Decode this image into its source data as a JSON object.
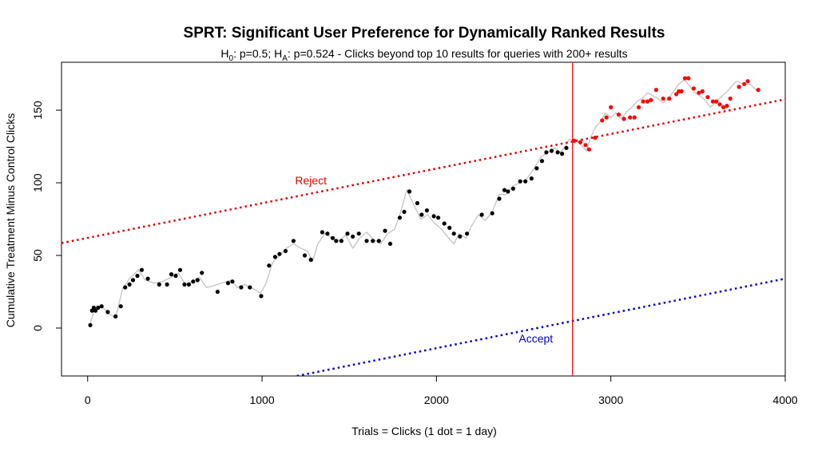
{
  "chart_data": {
    "type": "scatter",
    "title": "SPRT: Significant User Preference for Dynamically Ranked Results",
    "subtitle": {
      "h0_symbol": "H",
      "h0_sub": "0",
      "h0_text": ": p=0.5; ",
      "ha_symbol": "H",
      "ha_sub": "A",
      "ha_text": ": p=0.524 - Clicks beyond top 10 results for queries with 200+ results"
    },
    "xlabel": "Trials = Clicks (1 dot = 1 day)",
    "ylabel": "Cumulative Treatment Minus Control Clicks",
    "xlim": [
      -150,
      4000
    ],
    "ylim": [
      -33,
      183
    ],
    "xticks": [
      0,
      1000,
      2000,
      3000,
      4000
    ],
    "yticks": [
      0,
      50,
      100,
      150
    ],
    "xtick_labels": [
      "0",
      "1000",
      "2000",
      "3000",
      "4000"
    ],
    "ytick_labels": [
      "0",
      "50",
      "100",
      "150"
    ],
    "grid": false,
    "colors": {
      "walk": "#bebebe",
      "before": "#000000",
      "after": "#ff0000",
      "reject": "#dd0000",
      "accept": "#0000cc",
      "vline": "#ff0000"
    },
    "reject_line": {
      "label": "Reject",
      "label_x": 1280,
      "label_y": 99,
      "x": [
        -150,
        4000
      ],
      "y": [
        58.5,
        157.5
      ]
    },
    "accept_line": {
      "label": "Accept",
      "label_x": 2570,
      "label_y": -10,
      "x": [
        1200,
        4000
      ],
      "y": [
        -33,
        34
      ]
    },
    "vline_x": 2780,
    "walk": [
      [
        10,
        1
      ],
      [
        40,
        13
      ],
      [
        80,
        15
      ],
      [
        120,
        10
      ],
      [
        160,
        7
      ],
      [
        200,
        27
      ],
      [
        240,
        34
      ],
      [
        290,
        40
      ],
      [
        330,
        33
      ],
      [
        380,
        31
      ],
      [
        430,
        32
      ],
      [
        480,
        35
      ],
      [
        520,
        38
      ],
      [
        560,
        30
      ],
      [
        600,
        32
      ],
      [
        640,
        35
      ],
      [
        680,
        28
      ],
      [
        720,
        29
      ],
      [
        770,
        31
      ],
      [
        820,
        33
      ],
      [
        860,
        28
      ],
      [
        900,
        30
      ],
      [
        950,
        27
      ],
      [
        990,
        24
      ],
      [
        1020,
        30
      ],
      [
        1060,
        45
      ],
      [
        1100,
        50
      ],
      [
        1140,
        55
      ],
      [
        1180,
        58
      ],
      [
        1220,
        55
      ],
      [
        1260,
        53
      ],
      [
        1290,
        46
      ],
      [
        1320,
        58
      ],
      [
        1360,
        65
      ],
      [
        1400,
        62
      ],
      [
        1440,
        60
      ],
      [
        1480,
        64
      ],
      [
        1520,
        55
      ],
      [
        1560,
        62
      ],
      [
        1600,
        66
      ],
      [
        1640,
        61
      ],
      [
        1680,
        58
      ],
      [
        1720,
        65
      ],
      [
        1760,
        68
      ],
      [
        1790,
        78
      ],
      [
        1830,
        95
      ],
      [
        1870,
        85
      ],
      [
        1910,
        75
      ],
      [
        1950,
        78
      ],
      [
        1990,
        72
      ],
      [
        2030,
        68
      ],
      [
        2070,
        62
      ],
      [
        2100,
        58
      ],
      [
        2130,
        65
      ],
      [
        2170,
        62
      ],
      [
        2200,
        70
      ],
      [
        2240,
        78
      ],
      [
        2280,
        74
      ],
      [
        2320,
        80
      ],
      [
        2360,
        92
      ],
      [
        2400,
        92
      ],
      [
        2440,
        98
      ],
      [
        2480,
        100
      ],
      [
        2520,
        103
      ],
      [
        2560,
        110
      ],
      [
        2600,
        118
      ],
      [
        2640,
        121
      ],
      [
        2680,
        124
      ],
      [
        2710,
        121
      ],
      [
        2740,
        125
      ],
      [
        2760,
        130
      ],
      [
        2800,
        129
      ],
      [
        2830,
        126
      ],
      [
        2860,
        122
      ],
      [
        2880,
        130
      ],
      [
        2910,
        138
      ],
      [
        2940,
        142
      ],
      [
        2970,
        148
      ],
      [
        3000,
        145
      ],
      [
        3030,
        148
      ],
      [
        3060,
        144
      ],
      [
        3090,
        149
      ],
      [
        3120,
        152
      ],
      [
        3150,
        156
      ],
      [
        3180,
        158
      ],
      [
        3210,
        162
      ],
      [
        3240,
        160
      ],
      [
        3270,
        158
      ],
      [
        3300,
        155
      ],
      [
        3330,
        158
      ],
      [
        3360,
        163
      ],
      [
        3390,
        168
      ],
      [
        3420,
        171
      ],
      [
        3450,
        167
      ],
      [
        3480,
        162
      ],
      [
        3510,
        160
      ],
      [
        3540,
        157
      ],
      [
        3570,
        152
      ],
      [
        3600,
        155
      ],
      [
        3630,
        159
      ],
      [
        3660,
        162
      ],
      [
        3690,
        166
      ],
      [
        3720,
        170
      ],
      [
        3760,
        168
      ],
      [
        3800,
        168
      ],
      [
        3840,
        163
      ]
    ],
    "points_before": [
      [
        15,
        2
      ],
      [
        25,
        12
      ],
      [
        35,
        14
      ],
      [
        45,
        12
      ],
      [
        60,
        14
      ],
      [
        80,
        15
      ],
      [
        115,
        11
      ],
      [
        160,
        8
      ],
      [
        190,
        15
      ],
      [
        215,
        28
      ],
      [
        240,
        30
      ],
      [
        260,
        33
      ],
      [
        285,
        36
      ],
      [
        310,
        40
      ],
      [
        345,
        34
      ],
      [
        410,
        30
      ],
      [
        455,
        30
      ],
      [
        480,
        37
      ],
      [
        505,
        36
      ],
      [
        530,
        40
      ],
      [
        555,
        30
      ],
      [
        580,
        30
      ],
      [
        605,
        32
      ],
      [
        630,
        33
      ],
      [
        655,
        38
      ],
      [
        745,
        25
      ],
      [
        805,
        31
      ],
      [
        830,
        32
      ],
      [
        880,
        28
      ],
      [
        930,
        28
      ],
      [
        995,
        22
      ],
      [
        1040,
        43
      ],
      [
        1075,
        49
      ],
      [
        1100,
        51
      ],
      [
        1135,
        53
      ],
      [
        1180,
        60
      ],
      [
        1245,
        50
      ],
      [
        1280,
        47
      ],
      [
        1345,
        66
      ],
      [
        1375,
        65
      ],
      [
        1405,
        62
      ],
      [
        1425,
        60
      ],
      [
        1455,
        60
      ],
      [
        1490,
        65
      ],
      [
        1520,
        63
      ],
      [
        1555,
        65
      ],
      [
        1600,
        60
      ],
      [
        1635,
        60
      ],
      [
        1670,
        60
      ],
      [
        1705,
        67
      ],
      [
        1735,
        58
      ],
      [
        1790,
        76
      ],
      [
        1815,
        80
      ],
      [
        1845,
        94
      ],
      [
        1890,
        86
      ],
      [
        1915,
        78
      ],
      [
        1945,
        81
      ],
      [
        1985,
        77
      ],
      [
        2010,
        76
      ],
      [
        2045,
        72
      ],
      [
        2075,
        69
      ],
      [
        2100,
        65
      ],
      [
        2135,
        63
      ],
      [
        2175,
        65
      ],
      [
        2260,
        78
      ],
      [
        2320,
        79
      ],
      [
        2360,
        89
      ],
      [
        2390,
        95
      ],
      [
        2410,
        94
      ],
      [
        2440,
        96
      ],
      [
        2480,
        101
      ],
      [
        2510,
        101
      ],
      [
        2545,
        103
      ],
      [
        2575,
        110
      ],
      [
        2605,
        115
      ],
      [
        2630,
        121
      ],
      [
        2660,
        122
      ],
      [
        2695,
        121
      ],
      [
        2720,
        120
      ],
      [
        2745,
        124
      ]
    ],
    "points_after": [
      [
        2790,
        129
      ],
      [
        2825,
        128
      ],
      [
        2855,
        126
      ],
      [
        2875,
        123
      ],
      [
        2910,
        131
      ],
      [
        2950,
        143
      ],
      [
        2975,
        145
      ],
      [
        3000,
        152
      ],
      [
        3045,
        147
      ],
      [
        3075,
        144
      ],
      [
        3110,
        145
      ],
      [
        3135,
        145
      ],
      [
        3160,
        152
      ],
      [
        3185,
        156
      ],
      [
        3210,
        156
      ],
      [
        3230,
        157
      ],
      [
        3260,
        164
      ],
      [
        3300,
        158
      ],
      [
        3335,
        158
      ],
      [
        3375,
        161
      ],
      [
        3390,
        163
      ],
      [
        3405,
        163
      ],
      [
        3425,
        172
      ],
      [
        3445,
        172
      ],
      [
        3475,
        165
      ],
      [
        3505,
        162
      ],
      [
        3525,
        163
      ],
      [
        3555,
        159
      ],
      [
        3585,
        156
      ],
      [
        3605,
        156
      ],
      [
        3625,
        154
      ],
      [
        3645,
        152
      ],
      [
        3665,
        153
      ],
      [
        3685,
        158
      ],
      [
        3735,
        166
      ],
      [
        3765,
        168
      ],
      [
        3785,
        170
      ],
      [
        3845,
        164
      ]
    ]
  }
}
